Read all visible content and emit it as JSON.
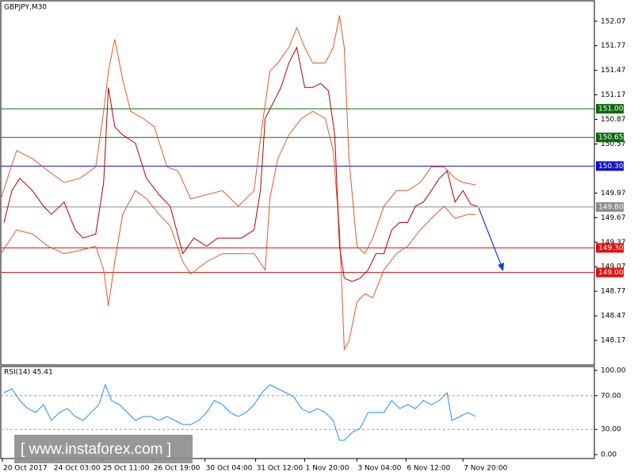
{
  "chart_data": [
    {
      "type": "line",
      "title": "GBPJPY,M30",
      "xlim": [
        0,
        375
      ],
      "ylim": [
        147.87,
        152.31
      ],
      "yticks": [
        152.07,
        151.77,
        151.47,
        151.17,
        150.87,
        150.57,
        149.97,
        149.67,
        149.37,
        149.07,
        148.77,
        148.47,
        148.17
      ],
      "levels": [
        {
          "value": 151,
          "label": "151.00",
          "color": "#0b6b0b"
        },
        {
          "value": 150.65,
          "label": "150.65",
          "color": "#0b6b0b"
        },
        {
          "value": 150.3,
          "label": "150.30",
          "color": "#1010c8"
        },
        {
          "value": 149.8,
          "label": "149.80",
          "color": "#8c8c8c"
        },
        {
          "value": 149.3,
          "label": "149.30",
          "color": "#dd1111"
        },
        {
          "value": 149,
          "label": "149.00",
          "color": "#dd1111"
        }
      ],
      "series": [
        {
          "color": "#e05a28",
          "x": [
            0,
            10,
            20,
            30,
            40,
            50,
            60,
            65,
            68,
            72,
            77,
            82,
            90,
            97,
            105,
            112,
            120,
            130,
            140,
            150,
            160,
            165,
            170,
            175,
            182,
            187,
            192,
            197,
            205,
            210,
            214,
            217,
            220,
            225,
            230,
            235,
            242,
            250,
            257,
            265,
            272,
            280,
            287,
            292,
            300
          ],
          "values": [
            149.9,
            150.49,
            150.39,
            150.24,
            150.1,
            150.15,
            150.29,
            150.97,
            151.46,
            151.85,
            151.36,
            150.97,
            150.88,
            150.78,
            150.29,
            150.24,
            149.9,
            149.95,
            150.0,
            149.81,
            150.0,
            150.78,
            151.46,
            151.56,
            151.75,
            151.99,
            151.75,
            151.56,
            151.56,
            151.75,
            152.14,
            151.75,
            150.39,
            149.32,
            149.23,
            149.42,
            149.81,
            150.0,
            150.0,
            150.1,
            150.29,
            150.29,
            150.15,
            150.1,
            150.07
          ]
        },
        {
          "color": "#e05a28",
          "x": [
            0,
            10,
            20,
            30,
            40,
            50,
            60,
            65,
            68,
            72,
            77,
            85,
            92,
            100,
            107,
            115,
            120,
            130,
            140,
            150,
            160,
            167,
            170,
            175,
            182,
            190,
            197,
            205,
            210,
            214,
            217,
            220,
            225,
            230,
            235,
            242,
            250,
            257,
            265,
            272,
            280,
            287,
            295,
            300
          ],
          "values": [
            149.23,
            149.52,
            149.47,
            149.32,
            149.23,
            149.27,
            149.32,
            149.03,
            148.59,
            149.13,
            149.71,
            150.0,
            149.9,
            149.71,
            149.57,
            149.13,
            148.98,
            149.13,
            149.23,
            149.23,
            149.23,
            149.03,
            149.9,
            150.39,
            150.68,
            150.88,
            150.97,
            150.88,
            150.49,
            149.52,
            148.06,
            148.16,
            148.64,
            148.74,
            148.69,
            149.03,
            149.23,
            149.32,
            149.52,
            149.66,
            149.81,
            149.66,
            149.71,
            149.71
          ]
        },
        {
          "color": "#b40000",
          "x": [
            2,
            7,
            12,
            20,
            27,
            32,
            40,
            47,
            52,
            60,
            65,
            68,
            72,
            77,
            85,
            92,
            100,
            107,
            115,
            122,
            130,
            137,
            145,
            152,
            160,
            164,
            167,
            172,
            177,
            182,
            187,
            192,
            197,
            202,
            207,
            211,
            214,
            217,
            222,
            227,
            232,
            237,
            242,
            247,
            252,
            257,
            262,
            267,
            272,
            277,
            282,
            287,
            292,
            297,
            301
          ],
          "values": [
            149.61,
            150.0,
            150.15,
            150.0,
            149.81,
            149.71,
            149.86,
            149.52,
            149.42,
            149.47,
            150.1,
            151.26,
            150.78,
            150.68,
            150.58,
            150.15,
            149.95,
            149.81,
            149.23,
            149.42,
            149.32,
            149.42,
            149.42,
            149.42,
            149.52,
            150.0,
            150.88,
            151.07,
            151.26,
            151.56,
            151.75,
            151.26,
            151.26,
            151.31,
            151.22,
            150.68,
            149.32,
            148.93,
            148.89,
            148.93,
            149.03,
            149.23,
            149.23,
            149.52,
            149.61,
            149.61,
            149.81,
            149.86,
            150.0,
            150.15,
            150.24,
            149.86,
            150.0,
            149.83,
            149.81
          ]
        }
      ]
    },
    {
      "type": "line",
      "title": "RSI(14) 45.41",
      "xlim": [
        0,
        375
      ],
      "ylim": [
        -4.7,
        104.7
      ],
      "yticks": [
        {
          "value": 100,
          "label": "100.00"
        },
        {
          "value": 70,
          "label": "70.00"
        },
        {
          "value": 30,
          "label": "30.00"
        },
        {
          "value": 0,
          "label": "0.00"
        }
      ],
      "xticks": [
        {
          "value": 1,
          "label": "20 Oct 2017"
        },
        {
          "value": 33,
          "label": "24 Oct 03:00"
        },
        {
          "value": 64,
          "label": "25 Oct 11:00"
        },
        {
          "value": 96,
          "label": "26 Oct 19:00"
        },
        {
          "value": 129,
          "label": "30 Oct 04:00"
        },
        {
          "value": 161,
          "label": "31 Oct 12:00"
        },
        {
          "value": 192,
          "label": "1 Nov 20:00"
        },
        {
          "value": 225,
          "label": "3 Nov 04:00"
        },
        {
          "value": 256,
          "label": "6 Nov 12:00"
        },
        {
          "value": 292,
          "label": "7 Nov 20:00"
        }
      ],
      "series": [
        {
          "color": "#1e90ff",
          "x": [
            2,
            7,
            12,
            17,
            22,
            27,
            32,
            37,
            42,
            47,
            52,
            57,
            62,
            66,
            70,
            75,
            80,
            85,
            90,
            95,
            100,
            105,
            110,
            115,
            120,
            125,
            130,
            135,
            140,
            145,
            150,
            155,
            160,
            165,
            170,
            175,
            180,
            185,
            190,
            195,
            200,
            205,
            210,
            214,
            217,
            222,
            227,
            232,
            237,
            242,
            247,
            252,
            257,
            262,
            267,
            272,
            277,
            282,
            285,
            290,
            295,
            300
          ],
          "values": [
            73.6,
            78.3,
            64.2,
            54.7,
            50,
            59.4,
            40.6,
            50,
            54.7,
            45.3,
            40.6,
            50,
            59.4,
            83,
            64.2,
            59.4,
            50,
            40.6,
            45.3,
            45.3,
            40.6,
            45.3,
            40.6,
            35.8,
            35.8,
            40.6,
            50,
            64.2,
            59.4,
            50,
            45.3,
            50,
            59.4,
            73.6,
            83,
            78.3,
            73.6,
            68.9,
            54.7,
            50,
            54.7,
            50,
            40.6,
            17,
            17,
            26.4,
            31.1,
            50,
            50,
            50,
            64.2,
            54.7,
            59.4,
            54.7,
            64.2,
            59.4,
            64.2,
            73.6,
            40.6,
            45.3,
            50,
            45.41
          ]
        }
      ]
    }
  ],
  "watermark": "[  www.instaforex.com ]"
}
